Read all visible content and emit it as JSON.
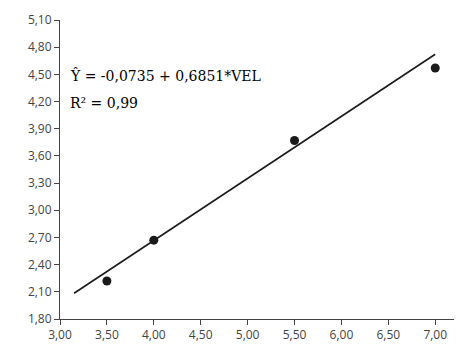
{
  "chart_data": {
    "type": "scatter",
    "series": [
      {
        "type": "scatter",
        "x": [
          3.5,
          4.0,
          5.5,
          7.0
        ],
        "values": [
          2.22,
          2.67,
          3.77,
          4.57
        ],
        "color": "#1a1a1a"
      },
      {
        "type": "line",
        "x": [
          3.15,
          7.0
        ],
        "values": [
          2.084565,
          4.7222
        ],
        "color": "#1a1a1a"
      }
    ],
    "xlim": [
      3.0,
      7.2
    ],
    "xticks": [
      {
        "value": 3.0,
        "label": "3,00"
      },
      {
        "value": 3.5,
        "label": "3,50"
      },
      {
        "value": 4.0,
        "label": "4,00"
      },
      {
        "value": 4.5,
        "label": "4,50"
      },
      {
        "value": 5.0,
        "label": "5,00"
      },
      {
        "value": 5.5,
        "label": "5,50"
      },
      {
        "value": 6.0,
        "label": "6,00"
      },
      {
        "value": 6.5,
        "label": "6,50"
      },
      {
        "value": 7.0,
        "label": "7,00"
      }
    ],
    "ylim": [
      1.8,
      5.1
    ],
    "yticks": [
      {
        "value": 1.8,
        "label": "1,80"
      },
      {
        "value": 2.1,
        "label": "2,10"
      },
      {
        "value": 2.4,
        "label": "2,40"
      },
      {
        "value": 2.7,
        "label": "2,70"
      },
      {
        "value": 3.0,
        "label": "3,00"
      },
      {
        "value": 3.3,
        "label": "3,30"
      },
      {
        "value": 3.6,
        "label": "3,60"
      },
      {
        "value": 3.9,
        "label": "3,90"
      },
      {
        "value": 4.2,
        "label": "4,20"
      },
      {
        "value": 4.5,
        "label": "4,50"
      },
      {
        "value": 4.8,
        "label": "4,80"
      },
      {
        "value": 5.1,
        "label": "5,10"
      }
    ],
    "annotations": [
      "Ŷ = -0,0735 + 0,6851*VEL",
      "R² = 0,99"
    ],
    "grid": false
  }
}
